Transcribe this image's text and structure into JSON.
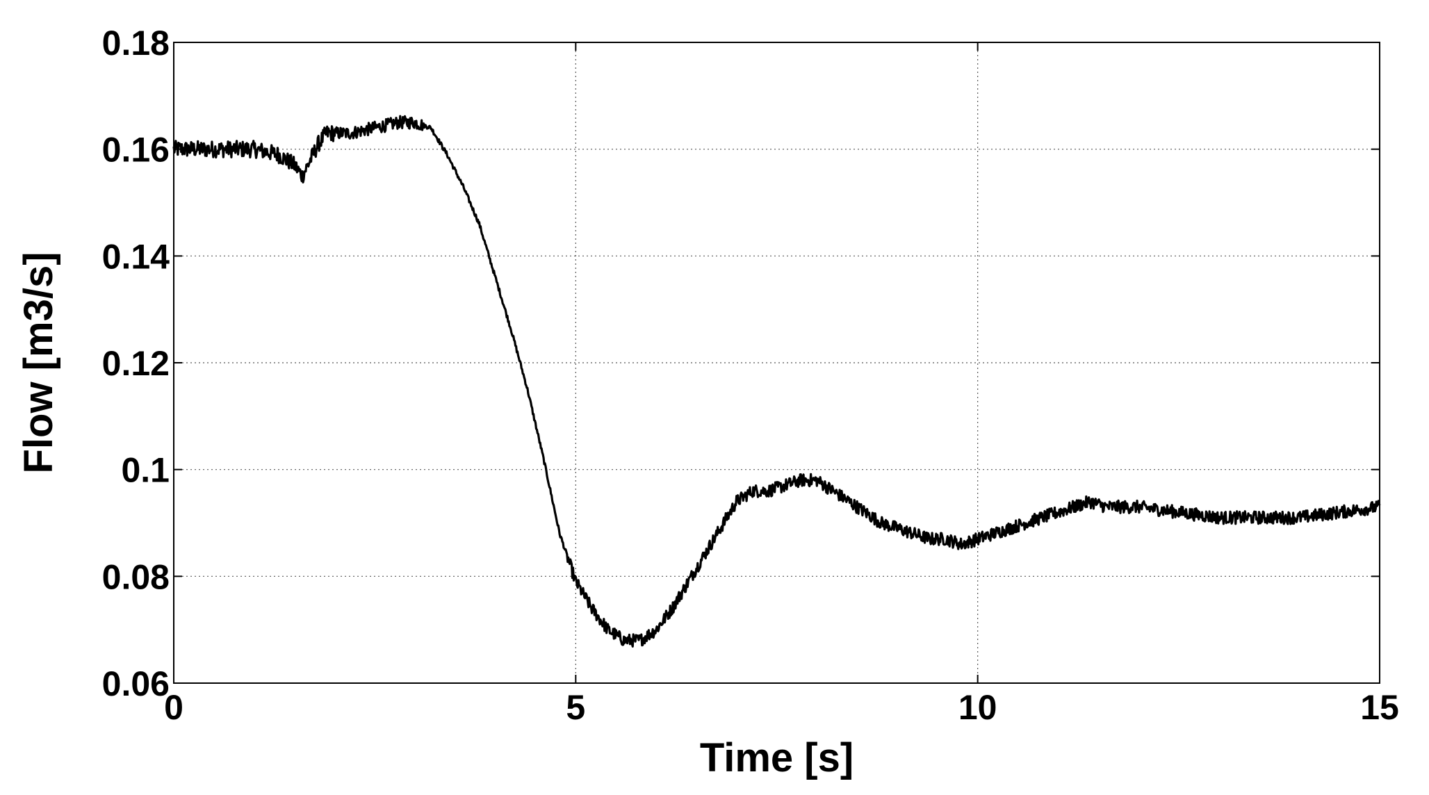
{
  "chart_data": {
    "type": "line",
    "title": "",
    "xlabel": "Time [s]",
    "ylabel": "Flow [m3/s]",
    "xlim": [
      0,
      15
    ],
    "ylim": [
      0.06,
      0.18
    ],
    "x_ticks": [
      0,
      5,
      10,
      15
    ],
    "x_tick_labels": [
      "0",
      "5",
      "10",
      "15"
    ],
    "y_ticks": [
      0.06,
      0.08,
      0.1,
      0.12,
      0.14,
      0.16,
      0.18
    ],
    "y_tick_labels": [
      "0.06",
      "0.08",
      "0.1",
      "0.12",
      "0.14",
      "0.16",
      "0.18"
    ],
    "grid": true,
    "legend": "none",
    "line_color": "#000000",
    "noise_amplitude": 0.0012,
    "series": [
      {
        "x": [
          0,
          0.5,
          1.0,
          1.3,
          1.5,
          1.6,
          1.7,
          1.8,
          1.9,
          2.0,
          2.2,
          2.5,
          2.8,
          3.0,
          3.2,
          3.4,
          3.6,
          3.8,
          4.0,
          4.2,
          4.4,
          4.6,
          4.8,
          5.0,
          5.2,
          5.4,
          5.6,
          5.8,
          6.0,
          6.2,
          6.4,
          6.6,
          6.8,
          7.0,
          7.2,
          7.4,
          7.6,
          7.8,
          8.0,
          8.2,
          8.4,
          8.6,
          8.8,
          9.0,
          9.2,
          9.4,
          9.6,
          9.8,
          10.0,
          10.2,
          10.4,
          10.6,
          10.8,
          11.0,
          11.2,
          11.4,
          11.6,
          11.8,
          12.0,
          12.5,
          13.0,
          13.5,
          14.0,
          14.5,
          15.0
        ],
        "y": [
          0.16,
          0.16,
          0.16,
          0.159,
          0.157,
          0.155,
          0.158,
          0.161,
          0.163,
          0.163,
          0.163,
          0.164,
          0.165,
          0.165,
          0.164,
          0.159,
          0.153,
          0.146,
          0.136,
          0.126,
          0.115,
          0.102,
          0.088,
          0.079,
          0.074,
          0.07,
          0.068,
          0.068,
          0.07,
          0.074,
          0.079,
          0.084,
          0.089,
          0.094,
          0.096,
          0.096,
          0.097,
          0.098,
          0.098,
          0.096,
          0.094,
          0.092,
          0.09,
          0.089,
          0.088,
          0.087,
          0.087,
          0.086,
          0.087,
          0.088,
          0.089,
          0.09,
          0.091,
          0.092,
          0.093,
          0.094,
          0.093,
          0.093,
          0.093,
          0.092,
          0.091,
          0.091,
          0.091,
          0.092,
          0.093
        ]
      }
    ]
  }
}
